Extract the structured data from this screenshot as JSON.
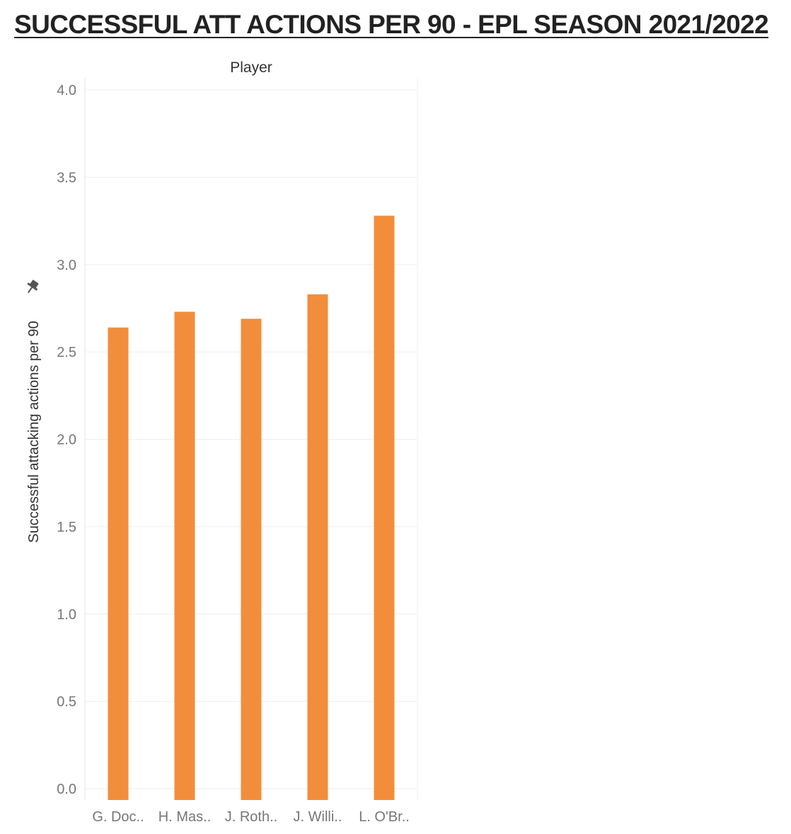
{
  "chart_data": {
    "type": "bar",
    "title": "SUCCESSFUL ATT ACTIONS PER 90 - EPL SEASON 2021/2022",
    "header": "Player",
    "xlabel": "",
    "ylabel": "Successful attacking actions per 90",
    "ylim": [
      0,
      4.0
    ],
    "yticks": [
      "0.0",
      "0.5",
      "1.0",
      "1.5",
      "2.0",
      "2.5",
      "3.0",
      "3.5",
      "4.0"
    ],
    "categories": [
      "G. Doc..",
      "H. Mas..",
      "J. Roth..",
      "J. Willi..",
      "L. O'Br.."
    ],
    "values": [
      2.64,
      2.73,
      2.69,
      2.83,
      3.28
    ],
    "bar_color": "#f28e3b",
    "grid": true,
    "pin_icon": "pin-icon"
  }
}
